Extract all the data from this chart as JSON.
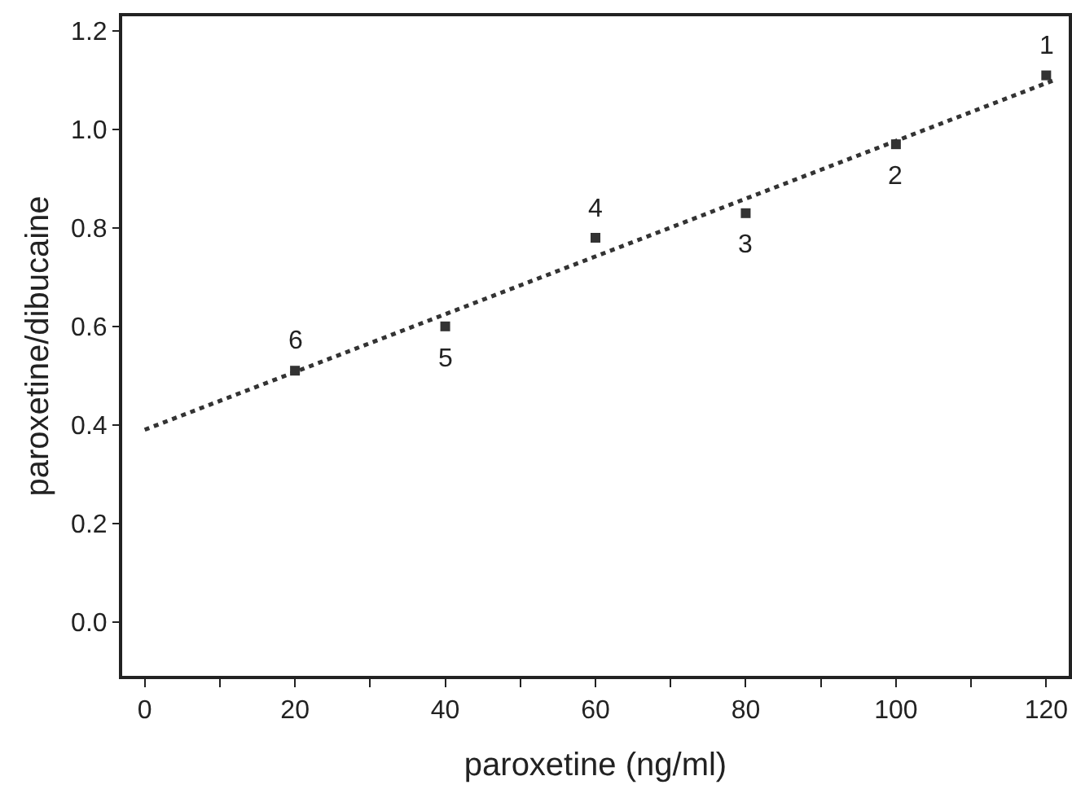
{
  "chart_data": {
    "type": "scatter",
    "xlabel": "paroxetine (ng/ml)",
    "ylabel": "paroxetine/dibucaine",
    "xlim": [
      -3,
      123
    ],
    "ylim": [
      -0.11,
      1.23
    ],
    "xticks": [
      0,
      {
        "value": 10,
        "label": null
      },
      20,
      {
        "value": 30,
        "label": null
      },
      40,
      {
        "value": 50,
        "label": null
      },
      60,
      {
        "value": 70,
        "label": null
      },
      80,
      {
        "value": 90,
        "label": null
      },
      100,
      {
        "value": 110,
        "label": null
      },
      120
    ],
    "yticks": [
      {
        "value": 0,
        "label": "0.0"
      },
      0.2,
      0.4,
      0.6,
      0.8,
      {
        "value": 1,
        "label": "1.0"
      },
      1.2
    ],
    "grid": false,
    "series": [
      {
        "color": "#333333",
        "marker": "square",
        "x": [
          120,
          100,
          80,
          60,
          40,
          20
        ],
        "values": [
          1.11,
          0.97,
          0.83,
          0.78,
          0.6,
          0.51
        ]
      },
      {
        "type": "line",
        "color": "#333333",
        "line_style": "dotted",
        "marker": "none",
        "x": [
          0,
          121
        ],
        "values": [
          0.39,
          1.1
        ]
      }
    ],
    "annotations": [
      {
        "text": "1",
        "x": 120,
        "y": 1.11
      },
      {
        "text": "2",
        "x": 100,
        "y": 0.97
      },
      {
        "text": "3",
        "x": 80,
        "y": 0.83
      },
      {
        "text": "4",
        "x": 60,
        "y": 0.78
      },
      {
        "text": "5",
        "x": 40,
        "y": 0.6
      },
      {
        "text": "6",
        "x": 20,
        "y": 0.51
      }
    ]
  }
}
